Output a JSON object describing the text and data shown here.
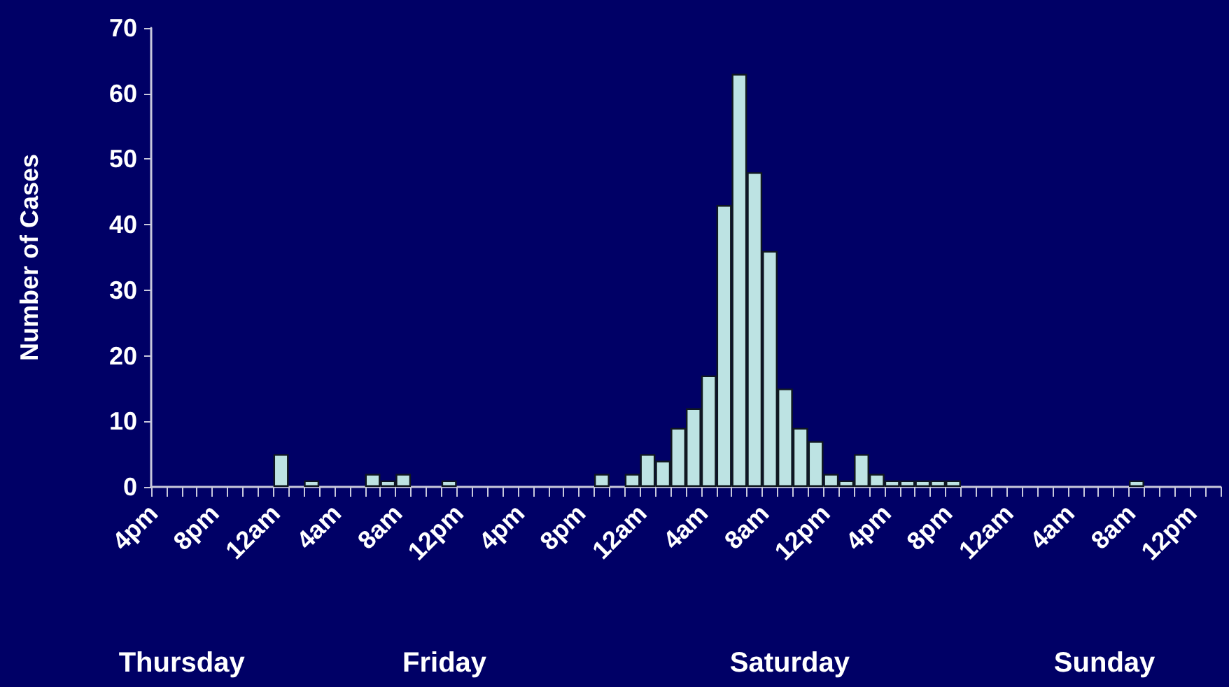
{
  "chart_data": {
    "type": "bar",
    "ylabel": "Number of Cases",
    "categories": [
      "4pm",
      null,
      null,
      null,
      "8pm",
      null,
      null,
      null,
      "12am",
      null,
      null,
      null,
      "4am",
      null,
      null,
      null,
      "8am",
      null,
      null,
      null,
      "12pm",
      null,
      null,
      null,
      "4pm",
      null,
      null,
      null,
      "8pm",
      null,
      null,
      null,
      "12am",
      null,
      null,
      null,
      "4am",
      null,
      null,
      null,
      "8am",
      null,
      null,
      null,
      "12pm",
      null,
      null,
      null,
      "4pm",
      null,
      null,
      null,
      "8pm",
      null,
      null,
      null,
      "12am",
      null,
      null,
      null,
      "4am",
      null,
      null,
      null,
      "8am",
      null,
      null,
      null,
      "12pm",
      null
    ],
    "values": [
      0,
      0,
      0,
      0,
      0,
      0,
      0,
      0,
      5,
      0,
      1,
      0,
      0,
      0,
      2,
      1,
      2,
      0,
      0,
      1,
      0,
      0,
      0,
      0,
      0,
      0,
      0,
      0,
      0,
      2,
      0,
      2,
      5,
      4,
      9,
      12,
      17,
      43,
      63,
      48,
      36,
      15,
      9,
      7,
      2,
      1,
      5,
      2,
      1,
      1,
      1,
      1,
      1,
      0,
      0,
      0,
      0,
      0,
      0,
      0,
      0,
      0,
      0,
      0,
      1,
      0,
      0,
      0,
      0,
      0
    ],
    "color": "#bde3e3",
    "ylim": [
      0,
      70
    ],
    "yticks": [
      0,
      10,
      20,
      30,
      40,
      50,
      60,
      70
    ],
    "grid": false,
    "annotations": [
      "Thursday",
      "Friday",
      "Saturday",
      "Sunday"
    ]
  }
}
